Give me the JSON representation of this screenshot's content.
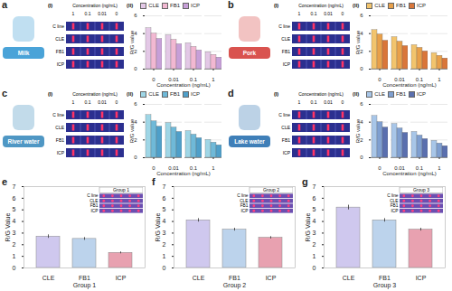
{
  "chart_data": [
    {
      "type": "bar",
      "panel": "a",
      "sample": "Milk",
      "strip_table": {
        "numeral": "(I)",
        "header": "Concentration (ng/mL)",
        "columns": [
          1,
          0.1,
          0.01,
          0
        ],
        "rows": [
          "C line",
          "CLE",
          "FB1",
          "ICP"
        ]
      },
      "numeral": "(II)",
      "x_label": "Concentration (ng/mL)",
      "y_label": "R/G value",
      "categories": [
        "0",
        "0.01",
        "0.1",
        "1"
      ],
      "series": [
        {
          "name": "CLE",
          "color": "#e3c8e6",
          "values": [
            4.6,
            3.8,
            2.9,
            1.9
          ]
        },
        {
          "name": "FB1",
          "color": "#f2b8d2",
          "values": [
            4.0,
            3.3,
            2.5,
            1.6
          ]
        },
        {
          "name": "ICP",
          "color": "#c79fd8",
          "values": [
            3.4,
            2.8,
            2.1,
            1.3
          ]
        }
      ],
      "ylim": [
        0,
        6
      ],
      "yticks": [
        0,
        2,
        4,
        6
      ],
      "grid": true,
      "legend": "top"
    },
    {
      "type": "bar",
      "panel": "b",
      "sample": "Pork",
      "strip_table": {
        "numeral": "(I)",
        "header": "Concentration (ng/mL)",
        "columns": [
          1,
          0.1,
          0.01,
          0
        ],
        "rows": [
          "C line",
          "CLE",
          "FB1",
          "ICP"
        ]
      },
      "numeral": "(II)",
      "x_label": "Concentration (ng/mL)",
      "y_label": "R/G value",
      "categories": [
        "0",
        "0.01",
        "0.1",
        "1"
      ],
      "series": [
        {
          "name": "CLE",
          "color": "#f2c46d",
          "values": [
            4.4,
            3.6,
            2.7,
            1.8
          ]
        },
        {
          "name": "FB1",
          "color": "#e8a04a",
          "values": [
            3.9,
            3.1,
            2.4,
            1.5
          ]
        },
        {
          "name": "ICP",
          "color": "#d9763a",
          "values": [
            3.2,
            2.6,
            2.0,
            1.2
          ]
        }
      ],
      "ylim": [
        0,
        6
      ],
      "yticks": [
        0,
        2,
        4,
        6
      ],
      "grid": true,
      "legend": "top"
    },
    {
      "type": "bar",
      "panel": "c",
      "sample": "River water",
      "strip_table": {
        "numeral": "(I)",
        "header": "Concentration (ng/mL)",
        "columns": [
          1,
          0.1,
          0.01,
          0
        ],
        "rows": [
          "C line",
          "CLE",
          "FB1",
          "ICP"
        ]
      },
      "numeral": "(II)",
      "x_label": "Concentration (ng/mL)",
      "y_label": "R/G value",
      "categories": [
        "0",
        "0.01",
        "0.1",
        "1"
      ],
      "series": [
        {
          "name": "CLE",
          "color": "#9fd6e6",
          "values": [
            4.8,
            3.9,
            3.0,
            2.0
          ]
        },
        {
          "name": "FB1",
          "color": "#6fb9d8",
          "values": [
            4.1,
            3.4,
            2.6,
            1.7
          ]
        },
        {
          "name": "ICP",
          "color": "#4f9fc9",
          "values": [
            3.5,
            2.9,
            2.2,
            1.4
          ]
        }
      ],
      "ylim": [
        0,
        6
      ],
      "yticks": [
        0,
        2,
        4,
        6
      ],
      "grid": true,
      "legend": "top"
    },
    {
      "type": "bar",
      "panel": "d",
      "sample": "Lake water",
      "strip_table": {
        "numeral": "(I)",
        "header": "Concentration (ng/mL)",
        "columns": [
          1,
          0.1,
          0.01,
          0
        ],
        "rows": [
          "C line",
          "CLE",
          "FB1",
          "ICP"
        ]
      },
      "numeral": "(II)",
      "x_label": "Concentration (ng/mL)",
      "y_label": "R/G value",
      "categories": [
        "0",
        "0.01",
        "0.1",
        "1"
      ],
      "series": [
        {
          "name": "CLE",
          "color": "#a8c6e8",
          "values": [
            4.7,
            3.8,
            2.9,
            1.9
          ]
        },
        {
          "name": "FB1",
          "color": "#7f9fd0",
          "values": [
            4.0,
            3.3,
            2.5,
            1.6
          ]
        },
        {
          "name": "ICP",
          "color": "#5a6fae",
          "values": [
            3.4,
            2.8,
            2.1,
            1.3
          ]
        }
      ],
      "ylim": [
        0,
        6
      ],
      "yticks": [
        0,
        2,
        4,
        6
      ],
      "grid": true,
      "legend": "top"
    },
    {
      "type": "bar",
      "panel": "e",
      "x_label": "Group 1",
      "y_label": "R/G Value",
      "categories": [
        "CLE",
        "FB1",
        "ICP"
      ],
      "values": [
        2.7,
        2.5,
        1.3
      ],
      "errors": [
        0.15,
        0.12,
        0.08
      ],
      "colors": [
        "#cfc8ee",
        "#bcd3ec",
        "#e8a1b0"
      ],
      "ylim": [
        0,
        7
      ],
      "yticks": [
        0,
        1,
        2,
        3,
        4,
        5,
        6,
        7
      ],
      "inset": {
        "title": "Group 1",
        "rows": [
          "C line",
          "CLE",
          "FB1",
          "ICP"
        ]
      }
    },
    {
      "type": "bar",
      "panel": "f",
      "x_label": "Group 2",
      "y_label": "R/G Value",
      "categories": [
        "CLE",
        "FB1",
        "ICP"
      ],
      "values": [
        4.1,
        3.3,
        2.6
      ],
      "errors": [
        0.15,
        0.12,
        0.1
      ],
      "colors": [
        "#cfc8ee",
        "#bcd3ec",
        "#e8a1b0"
      ],
      "ylim": [
        0,
        7
      ],
      "yticks": [
        0,
        1,
        2,
        3,
        4,
        5,
        6,
        7
      ],
      "inset": {
        "title": "Group 2",
        "rows": [
          "C line",
          "CLE",
          "FB1",
          "ICP"
        ]
      }
    },
    {
      "type": "bar",
      "panel": "g",
      "x_label": "Group 3",
      "y_label": "R/G Value",
      "categories": [
        "CLE",
        "FB1",
        "ICP"
      ],
      "values": [
        5.2,
        4.1,
        3.3
      ],
      "errors": [
        0.2,
        0.15,
        0.12
      ],
      "colors": [
        "#cfc8ee",
        "#bcd3ec",
        "#e8a1b0"
      ],
      "ylim": [
        0,
        7
      ],
      "yticks": [
        0,
        1,
        2,
        3,
        4,
        5,
        6,
        7
      ],
      "inset": {
        "title": "Group 3",
        "rows": [
          "C line",
          "CLE",
          "FB1",
          "ICP"
        ]
      }
    }
  ]
}
